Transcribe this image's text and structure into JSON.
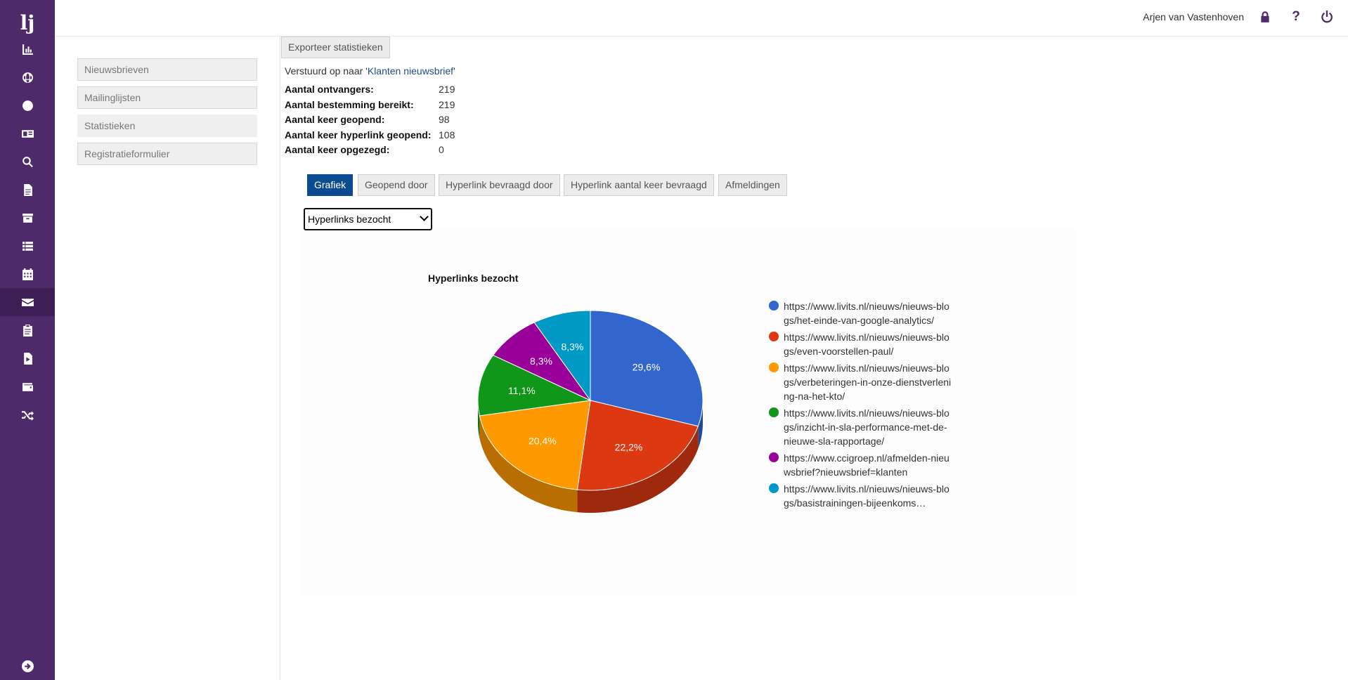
{
  "rail": {
    "logo": "lj",
    "items": [
      {
        "icon": "chart-icon",
        "active": false
      },
      {
        "icon": "globe-icon",
        "active": false
      },
      {
        "icon": "smile-icon",
        "active": false
      },
      {
        "icon": "id-card-icon",
        "active": false
      },
      {
        "icon": "search-icon",
        "active": false
      },
      {
        "icon": "file-icon",
        "active": false
      },
      {
        "icon": "archive-icon",
        "active": false
      },
      {
        "icon": "list-icon",
        "active": false
      },
      {
        "icon": "calendar-icon",
        "active": false
      },
      {
        "icon": "envelope-icon",
        "active": true
      },
      {
        "icon": "clipboard-icon",
        "active": false
      },
      {
        "icon": "file-export-icon",
        "active": false
      },
      {
        "icon": "wallet-icon",
        "active": false
      },
      {
        "icon": "shuffle-icon",
        "active": false
      }
    ],
    "bottom_icon": "arrow-right-circle-icon"
  },
  "topbar": {
    "user": "Arjen van Vastenhoven",
    "help": "?"
  },
  "subnav": [
    {
      "label": "Nieuwsbrieven"
    },
    {
      "label": "Mailinglijsten"
    },
    {
      "label": "Statistieken"
    },
    {
      "label": "Registratieformulier"
    }
  ],
  "main": {
    "export_label": "Exporteer statistieken",
    "sent_prefix": "Verstuurd op naar '",
    "sent_link": "Klanten nieuwsbrief",
    "sent_suffix": "'",
    "stats": [
      {
        "label": "Aantal ontvangers:",
        "value": "219"
      },
      {
        "label": "Aantal bestemming bereikt:",
        "value": "219"
      },
      {
        "label": "Aantal keer geopend:",
        "value": "98"
      },
      {
        "label": "Aantal keer hyperlink geopend:",
        "value": "108"
      },
      {
        "label": "Aantal keer opgezegd:",
        "value": "0"
      }
    ],
    "tabs": [
      {
        "label": "Grafiek",
        "active": true
      },
      {
        "label": "Geopend door",
        "active": false
      },
      {
        "label": "Hyperlink bevraagd door",
        "active": false
      },
      {
        "label": "Hyperlink aantal keer bevraagd",
        "active": false
      },
      {
        "label": "Afmeldingen",
        "active": false
      }
    ],
    "select_value": "Hyperlinks bezocht"
  },
  "chart_data": {
    "type": "pie",
    "title": "Hyperlinks bezocht",
    "legend_position": "right",
    "slices": [
      {
        "label": "https://www.livits.nl/nieuws/nieuws-blogs/het-einde-van-google-analytics/",
        "value": 29.6,
        "value_label": "29,6%",
        "color": "#3366cc"
      },
      {
        "label": "https://www.livits.nl/nieuws/nieuws-blogs/even-voorstellen-paul/",
        "value": 22.2,
        "value_label": "22,2%",
        "color": "#dc3912"
      },
      {
        "label": "https://www.livits.nl/nieuws/nieuws-blogs/verbeteringen-in-onze-dienstverlening-na-het-kto/",
        "value": 20.4,
        "value_label": "20,4%",
        "color": "#ff9900"
      },
      {
        "label": "https://www.livits.nl/nieuws/nieuws-blogs/inzicht-in-sla-performance-met-de-nieuwe-sla-rapportage/",
        "value": 11.1,
        "value_label": "11,1%",
        "color": "#109618"
      },
      {
        "label": "https://www.ccigroep.nl/afmelden-nieuwsbrief?nieuwsbrief=klanten",
        "value": 8.3,
        "value_label": "8,3%",
        "color": "#990099"
      },
      {
        "label": "https://www.livits.nl/nieuws/nieuws-blogs/basistrainingen-bijeenkoms…",
        "value": 8.3,
        "value_label": "8,3%",
        "color": "#0099c6"
      }
    ]
  }
}
